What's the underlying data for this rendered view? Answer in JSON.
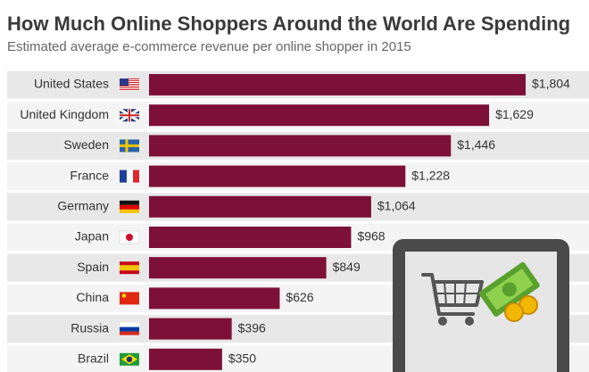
{
  "chart_data": {
    "type": "bar",
    "orientation": "horizontal",
    "title": "How Much Online Shoppers Around the World Are Spending",
    "subtitle": "Estimated average e-commerce revenue per online shopper in 2015",
    "categories": [
      "United States",
      "United Kingdom",
      "Sweden",
      "France",
      "Germany",
      "Japan",
      "Spain",
      "China",
      "Russia",
      "Brazil"
    ],
    "values": [
      1804,
      1629,
      1446,
      1228,
      1064,
      968,
      849,
      626,
      396,
      350
    ],
    "value_labels": [
      "$1,804",
      "$1,629",
      "$1,446",
      "$1,228",
      "$1,064",
      "$968",
      "$849",
      "$626",
      "$396",
      "$350"
    ],
    "color": "#7d1036"
  }
}
